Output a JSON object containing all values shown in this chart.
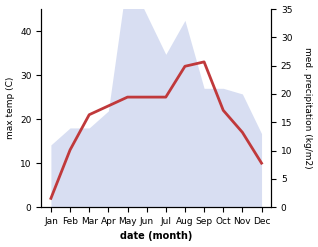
{
  "months": [
    "Jan",
    "Feb",
    "Mar",
    "Apr",
    "May",
    "Jun",
    "Jul",
    "Aug",
    "Sep",
    "Oct",
    "Nov",
    "Dec"
  ],
  "temperature": [
    2,
    13,
    21,
    23,
    25,
    25,
    25,
    32,
    33,
    22,
    17,
    10
  ],
  "precipitation": [
    11,
    14,
    14,
    17,
    41,
    34,
    27,
    33,
    21,
    21,
    20,
    13
  ],
  "temp_color": "#c0393b",
  "precip_fill_color": "#b8c4e8",
  "ylabel_left": "max temp (C)",
  "ylabel_right": "med. precipitation (kg/m2)",
  "xlabel": "date (month)",
  "ylim_left": [
    0,
    45
  ],
  "ylim_right": [
    0,
    35
  ],
  "yticks_left": [
    0,
    10,
    20,
    30,
    40
  ],
  "yticks_right": [
    0,
    5,
    10,
    15,
    20,
    25,
    30,
    35
  ],
  "bg_color": "#ffffff",
  "line_width": 2.0,
  "precip_alpha": 0.55
}
